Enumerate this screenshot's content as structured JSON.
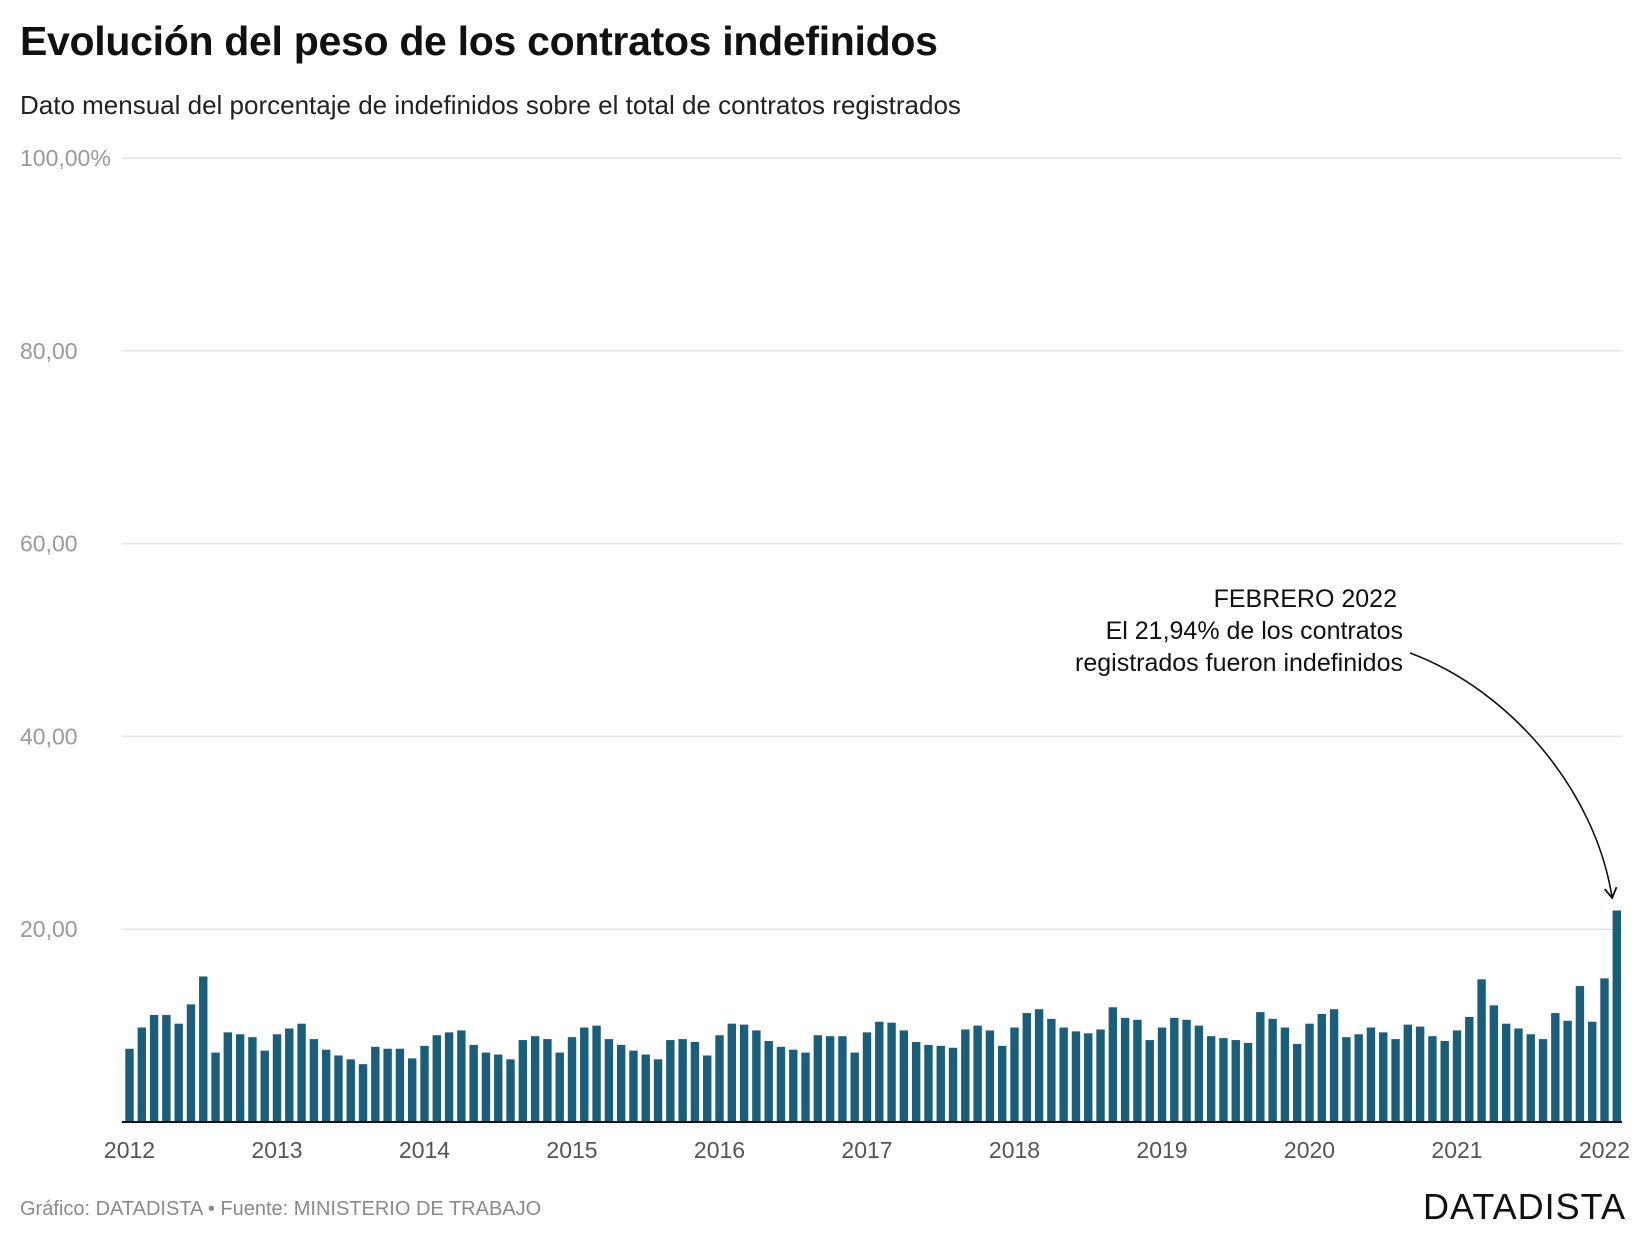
{
  "title": "Evolución del peso de los contratos indefinidos",
  "subtitle": "Dato mensual del porcentaje de indefinidos sobre el total de contratos registrados",
  "source": "Gráfico: DATADISTA • Fuente: MINISTERIO DE TRABAJO",
  "logo": "DATADISTA",
  "colors": {
    "bar": "#1a5e7a",
    "grid": "#e3e3e3",
    "tick_text": "#9a9a9a",
    "axis": "#111111"
  },
  "annotation": {
    "line1": "FEBRERO 2022",
    "line2": "El 21,94% de los contratos",
    "line3": "registrados fueron indefinidos"
  },
  "chart_data": {
    "type": "bar",
    "title": "Evolución del peso de los contratos indefinidos",
    "subtitle": "Dato mensual del porcentaje de indefinidos sobre el total de contratos registrados",
    "xlabel": "",
    "ylabel": "",
    "ylim": [
      0,
      100
    ],
    "y_ticks": [
      100,
      80,
      60,
      40,
      20
    ],
    "y_tick_labels": [
      "100,00%",
      "80,00",
      "60,00",
      "40,00",
      "20,00"
    ],
    "x_tick_labels": [
      "2012",
      "2013",
      "2014",
      "2015",
      "2016",
      "2017",
      "2018",
      "2019",
      "2020",
      "2021",
      "2022"
    ],
    "x_start": "2012-01",
    "x_end": "2022-02",
    "grid": true,
    "values": [
      7.6,
      9.8,
      11.1,
      11.1,
      10.2,
      12.2,
      15.1,
      7.2,
      9.3,
      9.1,
      8.8,
      7.4,
      9.1,
      9.7,
      10.2,
      8.6,
      7.5,
      6.9,
      6.5,
      6.0,
      7.8,
      7.6,
      7.6,
      6.6,
      7.9,
      9.0,
      9.3,
      9.5,
      8.0,
      7.2,
      7.0,
      6.5,
      8.5,
      8.9,
      8.6,
      7.2,
      8.8,
      9.8,
      10.0,
      8.6,
      8.0,
      7.4,
      7.0,
      6.5,
      8.5,
      8.6,
      8.3,
      6.9,
      9.0,
      10.2,
      10.1,
      9.5,
      8.4,
      7.8,
      7.5,
      7.2,
      9.0,
      8.9,
      8.9,
      7.2,
      9.3,
      10.4,
      10.3,
      9.5,
      8.3,
      8.0,
      7.9,
      7.7,
      9.6,
      10.0,
      9.5,
      7.9,
      9.8,
      11.3,
      11.7,
      10.7,
      9.8,
      9.4,
      9.2,
      9.6,
      11.9,
      10.8,
      10.6,
      8.5,
      9.8,
      10.8,
      10.6,
      10.0,
      8.9,
      8.7,
      8.5,
      8.2,
      11.4,
      10.7,
      9.8,
      8.1,
      10.2,
      11.2,
      11.7,
      8.8,
      9.1,
      9.8,
      9.3,
      8.6,
      10.1,
      9.9,
      8.9,
      8.4,
      9.5,
      10.9,
      14.8,
      12.1,
      10.2,
      9.7,
      9.1,
      8.6,
      11.3,
      10.5,
      14.1,
      10.4,
      14.9,
      21.94
    ]
  }
}
